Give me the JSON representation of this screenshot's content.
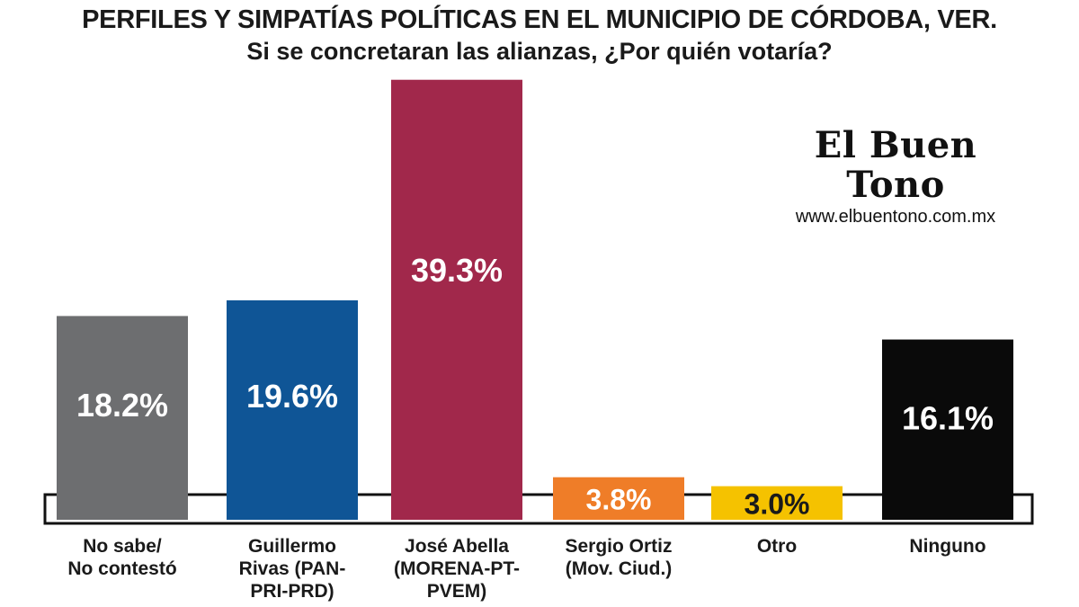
{
  "header": {
    "title": "PERFILES Y SIMPATÍAS POLÍTICAS EN EL MUNICIPIO DE CÓRDOBA, VER.",
    "subtitle": "Si se concretaran las alianzas, ¿Por quién votaría?"
  },
  "brand": {
    "name": "El Buen Tono",
    "url": "www.elbuentono.com.mx"
  },
  "chart_data": {
    "type": "bar",
    "title": "PERFILES Y SIMPATÍAS POLÍTICAS EN EL MUNICIPIO DE CÓRDOBA, VER.",
    "subtitle": "Si se concretaran las alianzas, ¿Por quién votaría?",
    "categories": [
      "No sabe/ No contestó",
      "Guillermo Rivas (PAN-PRI-PRD)",
      "José Abella (MORENA-PT-PVEM)",
      "Sergio Ortiz (Mov. Ciud.)",
      "Otro",
      "Ninguno"
    ],
    "label_lines": [
      [
        "No sabe/",
        "No contestó"
      ],
      [
        "Guillermo",
        "Rivas (PAN-",
        "PRI-PRD)"
      ],
      [
        "José Abella",
        "(MORENA-PT-",
        "PVEM)"
      ],
      [
        "Sergio Ortiz",
        "(Mov. Ciud.)"
      ],
      [
        "Otro"
      ],
      [
        "Ninguno"
      ]
    ],
    "values": [
      18.2,
      19.6,
      39.3,
      3.8,
      3.0,
      16.1
    ],
    "value_labels": [
      "18.2%",
      "19.6%",
      "39.3%",
      "3.8%",
      "3.0%",
      "16.1%"
    ],
    "colors": [
      "#6d6e70",
      "#0f5596",
      "#a1284b",
      "#ef7d28",
      "#f5c200",
      "#0a0a0a"
    ],
    "label_colors": [
      "#ffffff",
      "#ffffff",
      "#ffffff",
      "#ffffff",
      "#1a1a1a",
      "#ffffff"
    ],
    "xlabel": "",
    "ylabel": "",
    "ylim": [
      0,
      40
    ],
    "grid": false,
    "legend": "none"
  }
}
